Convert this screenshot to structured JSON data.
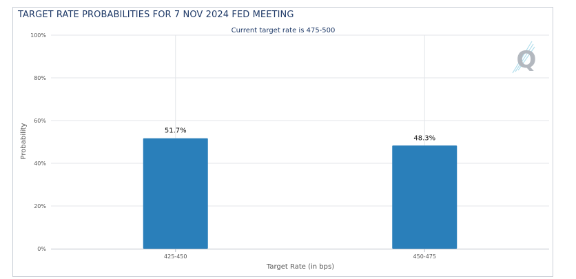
{
  "chart_data": {
    "type": "bar",
    "title": "TARGET RATE PROBABILITIES FOR 7 NOV 2024 FED MEETING",
    "subtitle": "Current target rate is 475-500",
    "categories": [
      "425-450",
      "450-475"
    ],
    "values": [
      51.7,
      48.3
    ],
    "value_labels": [
      "51.7%",
      "48.3%"
    ],
    "xlabel": "Target Rate (in bps)",
    "ylabel": "Probability",
    "ylim": [
      0,
      100
    ],
    "yticks": [
      0,
      20,
      40,
      60,
      80,
      100
    ],
    "ytick_labels": [
      "0%",
      "20%",
      "40%",
      "60%",
      "80%",
      "100%"
    ],
    "grid": true,
    "bar_color": "#2a7fba"
  },
  "logo": {
    "icon": "quikstrike-q-logo"
  }
}
